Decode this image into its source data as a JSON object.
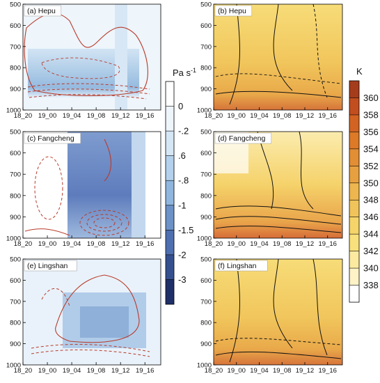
{
  "figure": {
    "units_left": "Pa s",
    "units_left_exp": "-1",
    "units_right": "K",
    "colors": {
      "omega_fill": "#2f4a9a",
      "theta_fill": "#d9792b",
      "red_contour": "#b83a2a",
      "black_contour": "#111111"
    }
  },
  "chart_data": [
    {
      "type": "heatmap",
      "panel": "a",
      "label": "(a) Hepu",
      "variable": "omega",
      "x_ticks": [
        "18_20",
        "19_00",
        "19_04",
        "19_08",
        "19_12",
        "19_16"
      ],
      "y_ticks": [
        500,
        600,
        700,
        800,
        900,
        1000
      ],
      "ylim": [
        1000,
        500
      ],
      "y_reversed": true,
      "colorbar": "omega"
    },
    {
      "type": "heatmap",
      "panel": "b",
      "label": "(b) Hepu",
      "variable": "theta_e",
      "x_ticks": [
        "18_20",
        "19_00",
        "19_04",
        "19_08",
        "19_12",
        "19_16"
      ],
      "y_ticks": [
        500,
        600,
        700,
        800,
        900,
        1000
      ],
      "ylim": [
        1000,
        500
      ],
      "y_reversed": true,
      "colorbar": "theta_e"
    },
    {
      "type": "heatmap",
      "panel": "c",
      "label": "(c) Fangcheng",
      "variable": "omega",
      "x_ticks": [
        "18_20",
        "19_00",
        "19_04",
        "19_08",
        "19_12",
        "19_16"
      ],
      "y_ticks": [
        500,
        600,
        700,
        800,
        900,
        1000
      ],
      "ylim": [
        1000,
        500
      ],
      "y_reversed": true,
      "colorbar": "omega"
    },
    {
      "type": "heatmap",
      "panel": "d",
      "label": "(d) Fangcheng",
      "variable": "theta_e",
      "x_ticks": [
        "18_20",
        "19_00",
        "19_04",
        "19_08",
        "19_12",
        "19_16"
      ],
      "y_ticks": [
        500,
        600,
        700,
        800,
        900,
        1000
      ],
      "ylim": [
        1000,
        500
      ],
      "y_reversed": true,
      "colorbar": "theta_e"
    },
    {
      "type": "heatmap",
      "panel": "e",
      "label": "(e) Lingshan",
      "variable": "omega",
      "x_ticks": [
        "18_20",
        "19_00",
        "19_04",
        "19_08",
        "19_12",
        "19_16"
      ],
      "y_ticks": [
        500,
        600,
        700,
        800,
        900,
        1000
      ],
      "ylim": [
        1000,
        500
      ],
      "y_reversed": true,
      "colorbar": "omega"
    },
    {
      "type": "heatmap",
      "panel": "f",
      "label": "(f) Lingshan",
      "variable": "theta_e",
      "x_ticks": [
        "18_20",
        "19_00",
        "19_04",
        "19_08",
        "19_12",
        "19_16"
      ],
      "y_ticks": [
        500,
        600,
        700,
        800,
        900,
        1000
      ],
      "ylim": [
        1000,
        500
      ],
      "y_reversed": true,
      "colorbar": "theta_e"
    }
  ],
  "colorbars": {
    "omega": {
      "labels": [
        "0",
        "-.2",
        ".6",
        "-.8",
        "-1",
        "-1.5",
        "-2",
        "-3"
      ],
      "colors": [
        "#ffffff",
        "#eef5fb",
        "#d5e6f5",
        "#b3d1ec",
        "#8fb6de",
        "#6c92c8",
        "#4e6fb0",
        "#35508f",
        "#1f2f68"
      ]
    },
    "theta_e": {
      "labels": [
        "360",
        "358",
        "356",
        "354",
        "352",
        "350",
        "348",
        "346",
        "344",
        "342",
        "340",
        "338"
      ],
      "colors": [
        "#a53d1c",
        "#c24e1f",
        "#d26322",
        "#dc7a27",
        "#e28e34",
        "#e7a040",
        "#edb64e",
        "#f0c45a",
        "#f5d46a",
        "#f8e07c",
        "#fbeaa0",
        "#fdf3c7",
        "#ffffff"
      ]
    }
  }
}
